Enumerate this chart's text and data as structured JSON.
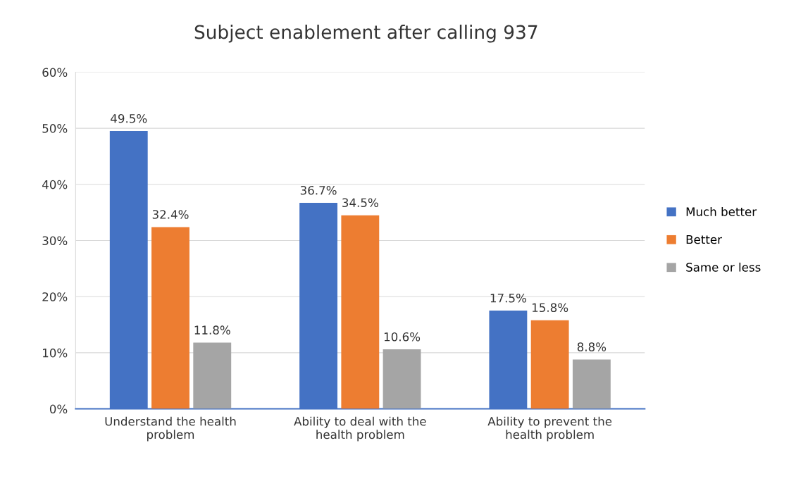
{
  "chart_data": {
    "type": "bar",
    "title": "Subject enablement after calling 937",
    "categories": [
      "Understand the health\nproblem",
      "Ability to deal with the\nhealth problem",
      "Ability to prevent the\nhealth problem"
    ],
    "series": [
      {
        "name": "Much better",
        "color": "#4472c4",
        "values": [
          49.5,
          36.7,
          17.5
        ],
        "value_labels": [
          "49.5%",
          "36.7%",
          "17.5%"
        ]
      },
      {
        "name": "Better",
        "color": "#ed7d31",
        "values": [
          32.4,
          34.5,
          15.8
        ],
        "value_labels": [
          "32.4%",
          "34.5%",
          "15.8%"
        ]
      },
      {
        "name": "Same or less",
        "color": "#a5a5a5",
        "values": [
          11.8,
          10.6,
          8.8
        ],
        "value_labels": [
          "11.8%",
          "10.6%",
          "8.8%"
        ]
      }
    ],
    "ylim": [
      0,
      60
    ],
    "yticks": [
      {
        "value": 0,
        "label": "0%"
      },
      {
        "value": 10,
        "label": "10%"
      },
      {
        "value": 20,
        "label": "20%"
      },
      {
        "value": 30,
        "label": "30%"
      },
      {
        "value": 40,
        "label": "40%"
      },
      {
        "value": 50,
        "label": "50%"
      },
      {
        "value": 60,
        "label": "60%"
      }
    ],
    "grid": "y",
    "legend": "right"
  }
}
